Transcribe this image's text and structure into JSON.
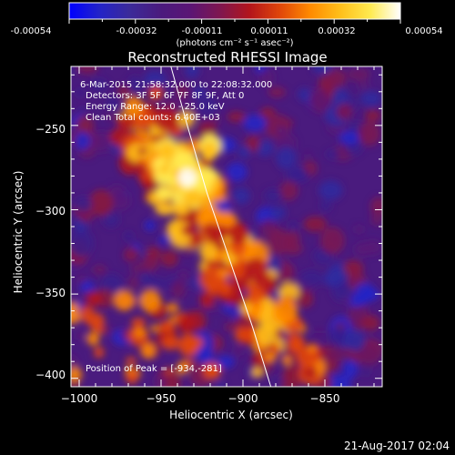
{
  "colorbar": {
    "tick_labels": [
      "-0.00054",
      "-0.00032",
      "-0.00011",
      "0.00011",
      "0.00032",
      "0.00054"
    ],
    "unit_label": "(photons cm⁻² s⁻¹ asec⁻²)",
    "stops": [
      "#0000ff",
      "#2323c8",
      "#3b2a9a",
      "#4a1b7e",
      "#5a1575",
      "#7e1650",
      "#b3151b",
      "#e0460a",
      "#ff8a00",
      "#ffbf1a",
      "#ffea50",
      "#ffffff"
    ]
  },
  "chart_data": {
    "type": "heatmap",
    "title": "Reconstructed RHESSI Image",
    "xlabel": "Heliocentric X (arcsec)",
    "ylabel": "Heliocentric Y (arcsec)",
    "xlim": [
      -1005,
      -815
    ],
    "ylim": [
      -405,
      -215
    ],
    "x_ticks": [
      -1000,
      -950,
      -900,
      -850
    ],
    "y_ticks": [
      -400,
      -350,
      -300,
      -250
    ],
    "x_tick_labels": [
      "−1000",
      "−950",
      "−900",
      "−850"
    ],
    "y_tick_labels": [
      "−400",
      "−350",
      "−300",
      "−250"
    ],
    "limb_curve": {
      "x": [
        -944,
        -934,
        -922,
        -908,
        -894,
        -883
      ],
      "y": [
        -215,
        -250,
        -290,
        -330,
        -370,
        -405
      ]
    },
    "peak": {
      "x": -934,
      "y": -281
    },
    "annotations": [
      " 6-Mar-2015 21:58:32.000 to 22:08:32.000",
      "Detectors: 3F 5F 6F 7F 8F 9F, Att 0",
      "Energy Range: 12.0 - 25.0 keV",
      "Clean    Total counts: 6.40E+03"
    ],
    "peak_label": "Position of Peak = [-934,-281]"
  },
  "footer": {
    "timestamp": "21-Aug-2017 02:04"
  }
}
